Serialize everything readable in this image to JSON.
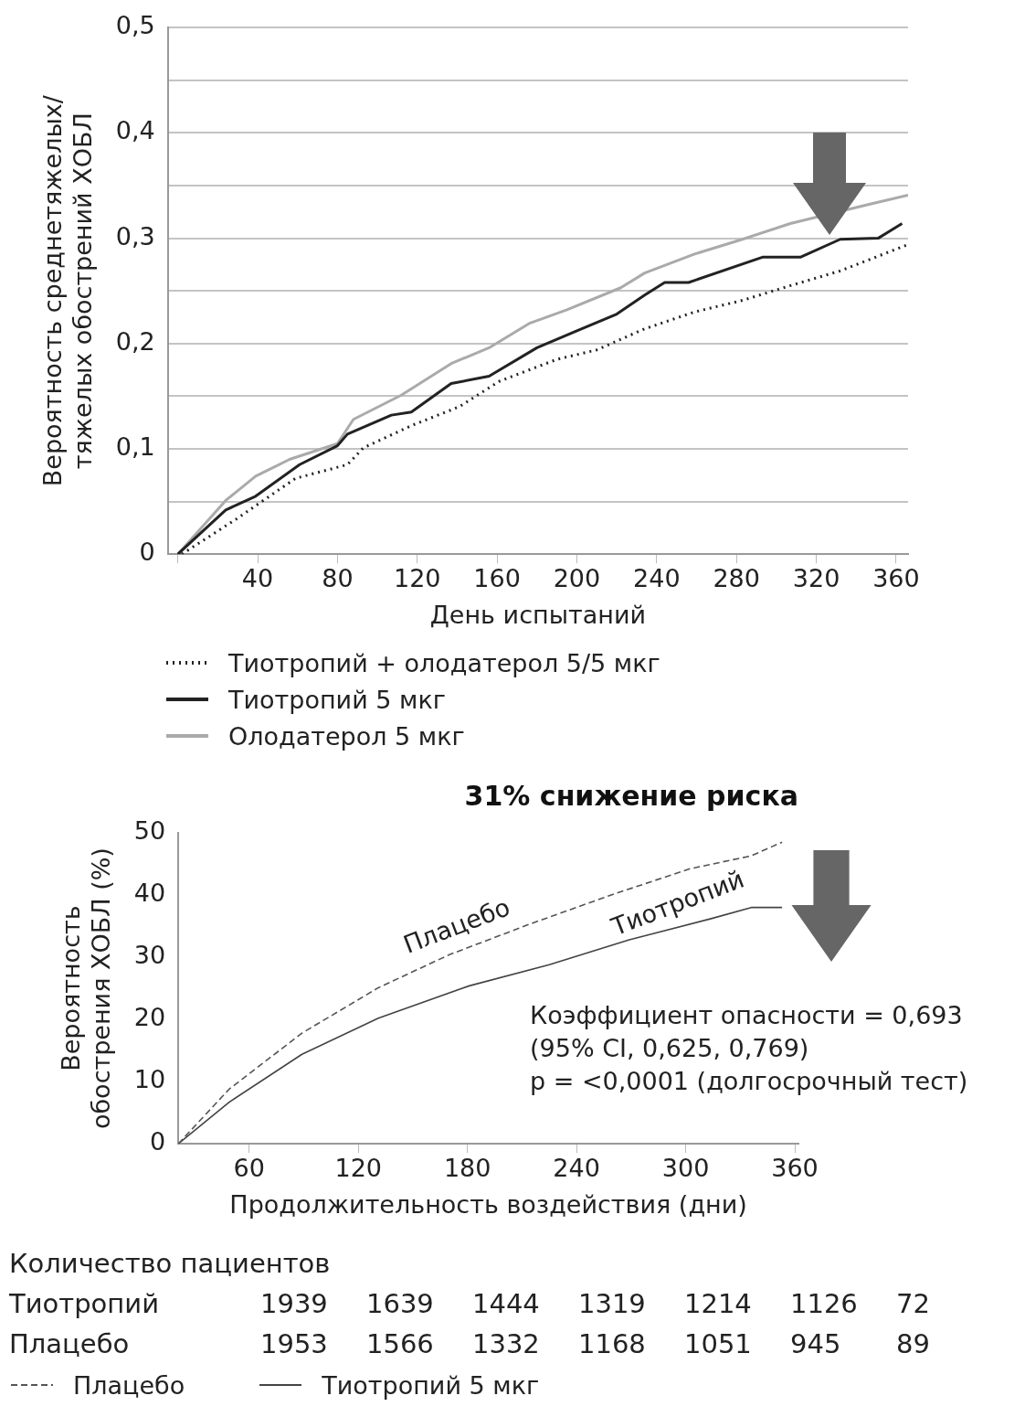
{
  "chart_data": [
    {
      "type": "line",
      "xlabel": "День испытаний",
      "ylabel": "Вероятность среднетяжелых/\nтяжелых обострений ХОБЛ",
      "xlim": [
        -5,
        366
      ],
      "xticks": [
        {
          "value": 0,
          "label": null
        },
        40,
        80,
        120,
        160,
        200,
        240,
        280,
        320,
        360
      ],
      "ylim": [
        0,
        0.5
      ],
      "yticks": [
        {
          "value": 0,
          "label": "0"
        },
        {
          "value": 0.05,
          "label": null
        },
        {
          "value": 0.1,
          "label": "0,1"
        },
        {
          "value": 0.15,
          "label": null
        },
        {
          "value": 0.2,
          "label": "0,2"
        },
        {
          "value": 0.25,
          "label": null
        },
        {
          "value": 0.3,
          "label": "0,3"
        },
        {
          "value": 0.35,
          "label": null
        },
        {
          "value": 0.4,
          "label": "0,4"
        },
        {
          "value": 0.45,
          "label": null
        },
        {
          "value": 0.5,
          "label": "0,5"
        }
      ],
      "grid": "y",
      "legend": "bottom",
      "marker": "none",
      "series": [
        {
          "name": "Тиотропий + олодатерол 5/5 мкг",
          "color": "#222222",
          "line_style": "dotted",
          "x": [
            2,
            29,
            59,
            85,
            93,
            117,
            141,
            161,
            190,
            210,
            234,
            259,
            283,
            307,
            332,
            366
          ],
          "values": [
            0,
            0.033,
            0.072,
            0.085,
            0.101,
            0.122,
            0.14,
            0.164,
            0.185,
            0.194,
            0.214,
            0.23,
            0.241,
            0.255,
            0.269,
            0.294
          ]
        },
        {
          "name": "Тиотропий 5 мкг",
          "color": "#222222",
          "line_style": "solid",
          "x": [
            0,
            24,
            39,
            61,
            80,
            85,
            107,
            117,
            137,
            156,
            180,
            200,
            220,
            234,
            244,
            256,
            293,
            312,
            332,
            351,
            363
          ],
          "values": [
            0,
            0.042,
            0.055,
            0.085,
            0.103,
            0.114,
            0.132,
            0.135,
            0.162,
            0.169,
            0.196,
            0.212,
            0.228,
            0.246,
            0.258,
            0.258,
            0.282,
            0.282,
            0.299,
            0.3,
            0.314
          ]
        },
        {
          "name": "Олодатерол 5 мкг",
          "color": "#aaaaaa",
          "line_style": "solid",
          "x": [
            0,
            24,
            39,
            56,
            80,
            88,
            112,
            137,
            156,
            176,
            195,
            222,
            234,
            259,
            283,
            307,
            346,
            366
          ],
          "values": [
            0,
            0.051,
            0.074,
            0.09,
            0.105,
            0.128,
            0.151,
            0.181,
            0.196,
            0.219,
            0.232,
            0.253,
            0.267,
            0.285,
            0.299,
            0.314,
            0.332,
            0.341
          ]
        }
      ]
    },
    {
      "type": "line",
      "title": "31% снижение риска",
      "xlabel": "Продолжительность воздействия (дни)",
      "ylabel": "Вероятность\nобострения ХОБЛ (%)",
      "xlim": [
        21,
        362
      ],
      "xticks": [
        60,
        120,
        180,
        240,
        300,
        360
      ],
      "ylim": [
        0,
        50
      ],
      "yticks": [
        0,
        10,
        20,
        30,
        40,
        50
      ],
      "grid": false,
      "legend": "bottom",
      "marker": "none",
      "series": [
        {
          "name": "Плацебо",
          "color": "#555555",
          "line_style": "dashed",
          "x": [
            21,
            49,
            89,
            131,
            170,
            214,
            258,
            302,
            336,
            353
          ],
          "values": [
            0,
            8.8,
            17.8,
            25.1,
            30.4,
            35.3,
            39.9,
            44.2,
            46.3,
            48.5
          ]
        },
        {
          "name": "Тиотропий 5 мкг",
          "color": "#444444",
          "line_style": "solid",
          "x": [
            21,
            49,
            89,
            131,
            181,
            225,
            269,
            314,
            336,
            353
          ],
          "values": [
            0,
            6.7,
            14.4,
            20.2,
            25.4,
            28.8,
            32.8,
            36.2,
            38,
            38
          ]
        }
      ],
      "annotations": [
        "Плацебо",
        "Тиотропий",
        "Коэффициент опасности = 0,693\n(95% CI, 0,625, 0,769)\np = <0,0001 (долгосрочный тест)",
        "Количество пациентов",
        "Тиотропий 1939 1639 1444 1319 1214 1126 72",
        "Плацебо 1953 1566 1332 1168 1051 945 89"
      ]
    }
  ]
}
